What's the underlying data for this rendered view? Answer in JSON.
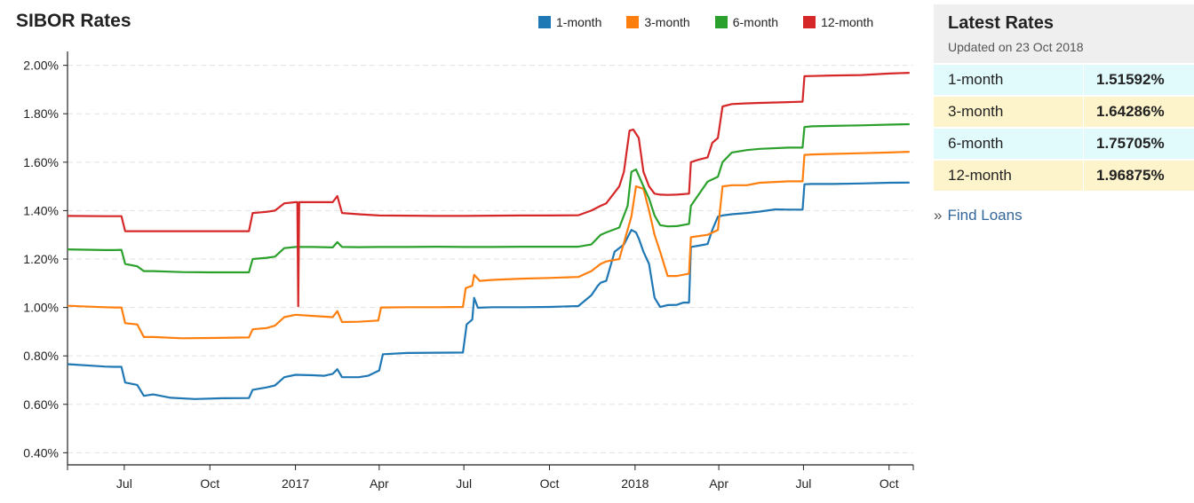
{
  "chart_data": {
    "type": "line",
    "title": "SIBOR Rates",
    "ylim": [
      0.35,
      2.05
    ],
    "yticks": [
      0.4,
      0.6,
      0.8,
      1.0,
      1.2,
      1.4,
      1.6,
      1.8,
      2.0
    ],
    "ytick_labels": [
      "0.40%",
      "0.60%",
      "0.80%",
      "1.00%",
      "1.20%",
      "1.40%",
      "1.60%",
      "1.80%",
      "2.00%"
    ],
    "xlim": [
      "2016-05-01",
      "2018-10-27"
    ],
    "xticks": [
      "2016-07-01",
      "2016-10-01",
      "2017-01-01",
      "2017-04-01",
      "2017-07-01",
      "2017-10-01",
      "2018-01-01",
      "2018-04-01",
      "2018-07-01",
      "2018-10-01"
    ],
    "xtick_labels": [
      "Jul",
      "Oct",
      "2017",
      "Apr",
      "Jul",
      "Oct",
      "2018",
      "Apr",
      "Jul",
      "Oct"
    ],
    "grid": "horizontal dashed",
    "legend": "top",
    "series": [
      {
        "name": "1-month",
        "color": "#1f77b4",
        "x": [
          "2016-05-01",
          "2016-06-10",
          "2016-06-20",
          "2016-06-28",
          "2016-07-02",
          "2016-07-15",
          "2016-07-22",
          "2016-08-01",
          "2016-08-20",
          "2016-09-15",
          "2016-10-15",
          "2016-11-12",
          "2016-11-16",
          "2016-12-01",
          "2016-12-10",
          "2016-12-20",
          "2017-01-01",
          "2017-01-20",
          "2017-02-01",
          "2017-02-10",
          "2017-02-15",
          "2017-02-20",
          "2017-03-10",
          "2017-03-20",
          "2017-04-01",
          "2017-04-05",
          "2017-05-01",
          "2017-06-01",
          "2017-06-30",
          "2017-07-04",
          "2017-07-10",
          "2017-07-12",
          "2017-07-16",
          "2017-08-01",
          "2017-09-01",
          "2017-10-01",
          "2017-11-01",
          "2017-11-15",
          "2017-11-22",
          "2017-11-25",
          "2017-12-01",
          "2017-12-10",
          "2017-12-20",
          "2017-12-28",
          "2018-01-02",
          "2018-01-05",
          "2018-01-10",
          "2018-01-16",
          "2018-01-22",
          "2018-01-28",
          "2018-02-05",
          "2018-02-15",
          "2018-02-22",
          "2018-02-28",
          "2018-03-02",
          "2018-03-10",
          "2018-03-20",
          "2018-03-25",
          "2018-03-31",
          "2018-04-05",
          "2018-04-15",
          "2018-05-01",
          "2018-05-15",
          "2018-06-01",
          "2018-06-15",
          "2018-06-30",
          "2018-07-02",
          "2018-07-10",
          "2018-08-01",
          "2018-09-01",
          "2018-10-01",
          "2018-10-23"
        ],
        "values": [
          0.766,
          0.756,
          0.755,
          0.755,
          0.69,
          0.68,
          0.635,
          0.641,
          0.627,
          0.622,
          0.625,
          0.626,
          0.66,
          0.67,
          0.678,
          0.712,
          0.722,
          0.72,
          0.718,
          0.726,
          0.745,
          0.712,
          0.712,
          0.718,
          0.74,
          0.807,
          0.812,
          0.813,
          0.814,
          0.93,
          0.95,
          1.04,
          0.999,
          1.001,
          1.001,
          1.002,
          1.006,
          1.05,
          1.09,
          1.102,
          1.11,
          1.23,
          1.26,
          1.32,
          1.31,
          1.285,
          1.23,
          1.18,
          1.04,
          1.002,
          1.01,
          1.011,
          1.02,
          1.02,
          1.25,
          1.255,
          1.262,
          1.32,
          1.375,
          1.38,
          1.385,
          1.39,
          1.396,
          1.405,
          1.404,
          1.404,
          1.509,
          1.51,
          1.51,
          1.512,
          1.515,
          1.516
        ]
      },
      {
        "name": "3-month",
        "color": "#ff7f0e",
        "x": [
          "2016-05-01",
          "2016-06-10",
          "2016-06-20",
          "2016-06-28",
          "2016-07-02",
          "2016-07-15",
          "2016-07-22",
          "2016-08-01",
          "2016-09-01",
          "2016-10-01",
          "2016-11-12",
          "2016-11-16",
          "2016-12-01",
          "2016-12-10",
          "2016-12-20",
          "2017-01-01",
          "2017-01-20",
          "2017-02-10",
          "2017-02-15",
          "2017-02-20",
          "2017-03-10",
          "2017-03-31",
          "2017-04-03",
          "2017-05-01",
          "2017-06-01",
          "2017-06-30",
          "2017-07-03",
          "2017-07-10",
          "2017-07-12",
          "2017-07-18",
          "2017-08-01",
          "2017-09-01",
          "2017-10-01",
          "2017-11-01",
          "2017-11-15",
          "2017-11-25",
          "2017-12-01",
          "2017-12-15",
          "2017-12-28",
          "2018-01-02",
          "2018-01-10",
          "2018-01-16",
          "2018-01-22",
          "2018-01-28",
          "2018-02-05",
          "2018-02-15",
          "2018-02-28",
          "2018-03-02",
          "2018-03-20",
          "2018-03-31",
          "2018-04-05",
          "2018-04-15",
          "2018-05-01",
          "2018-05-15",
          "2018-06-15",
          "2018-06-30",
          "2018-07-02",
          "2018-07-10",
          "2018-08-01",
          "2018-09-01",
          "2018-10-01",
          "2018-10-23"
        ],
        "values": [
          1.007,
          1.001,
          1.0,
          1.0,
          0.935,
          0.93,
          0.878,
          0.878,
          0.873,
          0.874,
          0.876,
          0.91,
          0.915,
          0.925,
          0.96,
          0.97,
          0.965,
          0.96,
          0.985,
          0.94,
          0.941,
          0.946,
          1.0,
          1.001,
          1.001,
          1.002,
          1.08,
          1.09,
          1.135,
          1.11,
          1.114,
          1.119,
          1.122,
          1.126,
          1.15,
          1.18,
          1.19,
          1.2,
          1.375,
          1.5,
          1.49,
          1.4,
          1.3,
          1.23,
          1.13,
          1.13,
          1.14,
          1.29,
          1.3,
          1.32,
          1.5,
          1.505,
          1.505,
          1.515,
          1.521,
          1.521,
          1.63,
          1.632,
          1.634,
          1.637,
          1.64,
          1.643
        ]
      },
      {
        "name": "6-month",
        "color": "#2ca02c",
        "x": [
          "2016-05-01",
          "2016-06-10",
          "2016-06-20",
          "2016-06-28",
          "2016-07-02",
          "2016-07-15",
          "2016-07-22",
          "2016-08-01",
          "2016-09-01",
          "2016-10-01",
          "2016-11-12",
          "2016-11-16",
          "2016-12-01",
          "2016-12-10",
          "2016-12-20",
          "2017-01-01",
          "2017-01-20",
          "2017-02-10",
          "2017-02-15",
          "2017-02-20",
          "2017-03-10",
          "2017-04-01",
          "2017-05-01",
          "2017-06-01",
          "2017-07-01",
          "2017-08-01",
          "2017-09-01",
          "2017-10-01",
          "2017-11-01",
          "2017-11-15",
          "2017-11-25",
          "2017-12-01",
          "2017-12-15",
          "2017-12-24",
          "2017-12-28",
          "2018-01-02",
          "2018-01-10",
          "2018-01-16",
          "2018-01-22",
          "2018-01-28",
          "2018-02-05",
          "2018-02-15",
          "2018-02-28",
          "2018-03-02",
          "2018-03-20",
          "2018-03-31",
          "2018-04-05",
          "2018-04-15",
          "2018-05-01",
          "2018-05-15",
          "2018-06-15",
          "2018-06-30",
          "2018-07-02",
          "2018-07-10",
          "2018-08-01",
          "2018-09-01",
          "2018-10-01",
          "2018-10-23"
        ],
        "values": [
          1.24,
          1.237,
          1.237,
          1.238,
          1.18,
          1.17,
          1.15,
          1.15,
          1.146,
          1.145,
          1.145,
          1.2,
          1.205,
          1.21,
          1.245,
          1.25,
          1.25,
          1.248,
          1.27,
          1.25,
          1.249,
          1.25,
          1.25,
          1.251,
          1.25,
          1.25,
          1.251,
          1.251,
          1.251,
          1.26,
          1.3,
          1.31,
          1.33,
          1.42,
          1.56,
          1.57,
          1.5,
          1.45,
          1.38,
          1.34,
          1.335,
          1.336,
          1.345,
          1.42,
          1.52,
          1.54,
          1.6,
          1.64,
          1.65,
          1.655,
          1.66,
          1.66,
          1.745,
          1.748,
          1.75,
          1.752,
          1.755,
          1.757
        ]
      },
      {
        "name": "12-month",
        "color": "#d62728",
        "x": [
          "2016-05-01",
          "2016-06-10",
          "2016-06-20",
          "2016-06-28",
          "2016-07-02",
          "2016-07-15",
          "2016-08-01",
          "2016-09-01",
          "2016-10-01",
          "2016-11-12",
          "2016-11-16",
          "2016-12-01",
          "2016-12-10",
          "2016-12-20",
          "2017-01-01",
          "2017-01-03",
          "2017-01-04",
          "2017-01-05",
          "2017-01-06",
          "2017-01-20",
          "2017-02-10",
          "2017-02-15",
          "2017-02-20",
          "2017-03-10",
          "2017-04-01",
          "2017-05-01",
          "2017-06-01",
          "2017-07-01",
          "2017-08-01",
          "2017-09-01",
          "2017-10-01",
          "2017-11-01",
          "2017-11-15",
          "2017-11-25",
          "2017-12-01",
          "2017-12-15",
          "2017-12-20",
          "2017-12-26",
          "2017-12-30",
          "2018-01-05",
          "2018-01-10",
          "2018-01-16",
          "2018-01-22",
          "2018-01-28",
          "2018-02-05",
          "2018-02-15",
          "2018-02-28",
          "2018-03-02",
          "2018-03-10",
          "2018-03-20",
          "2018-03-25",
          "2018-03-31",
          "2018-04-05",
          "2018-04-15",
          "2018-05-01",
          "2018-05-15",
          "2018-06-15",
          "2018-06-30",
          "2018-07-02",
          "2018-07-10",
          "2018-08-01",
          "2018-09-01",
          "2018-10-01",
          "2018-10-23"
        ],
        "values": [
          1.378,
          1.377,
          1.377,
          1.377,
          1.315,
          1.315,
          1.315,
          1.315,
          1.315,
          1.315,
          1.39,
          1.395,
          1.4,
          1.43,
          1.435,
          1.435,
          1.005,
          1.435,
          1.435,
          1.435,
          1.435,
          1.46,
          1.39,
          1.385,
          1.38,
          1.379,
          1.378,
          1.378,
          1.379,
          1.38,
          1.38,
          1.381,
          1.4,
          1.42,
          1.43,
          1.5,
          1.56,
          1.73,
          1.735,
          1.7,
          1.56,
          1.5,
          1.47,
          1.466,
          1.465,
          1.466,
          1.47,
          1.6,
          1.61,
          1.62,
          1.68,
          1.7,
          1.83,
          1.84,
          1.843,
          1.845,
          1.848,
          1.85,
          1.955,
          1.956,
          1.958,
          1.96,
          1.966,
          1.969
        ]
      }
    ]
  },
  "legend": {
    "items": [
      {
        "label": "1-month",
        "color": "#1f77b4"
      },
      {
        "label": "3-month",
        "color": "#ff7f0e"
      },
      {
        "label": "6-month",
        "color": "#2ca02c"
      },
      {
        "label": "12-month",
        "color": "#d62728"
      }
    ]
  },
  "panel": {
    "title": "Latest Rates",
    "updated": "Updated on 23 Oct 2018",
    "rows": [
      {
        "name": "1-month",
        "value": "1.51592%"
      },
      {
        "name": "3-month",
        "value": "1.64286%"
      },
      {
        "name": "6-month",
        "value": "1.75705%"
      },
      {
        "name": "12-month",
        "value": "1.96875%"
      }
    ],
    "link_prefix": "»",
    "link_label": "Find Loans"
  }
}
